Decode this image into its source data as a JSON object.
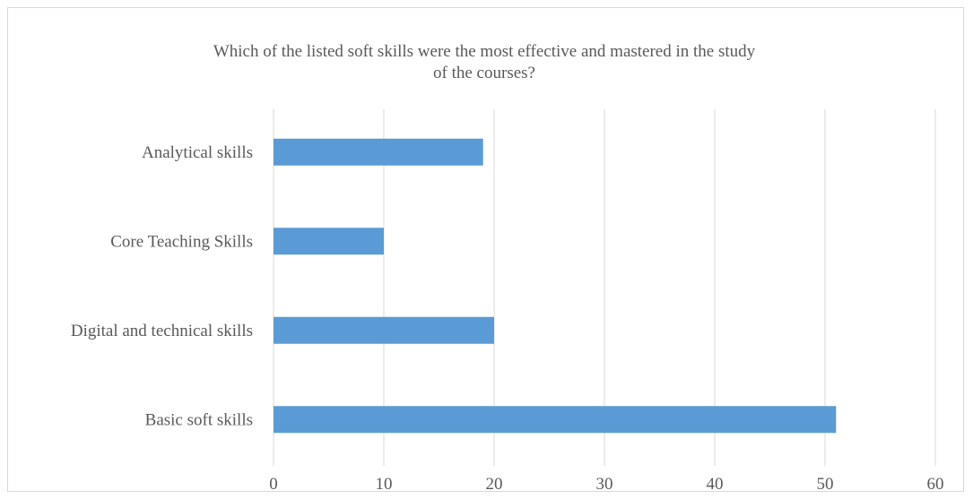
{
  "chart_data": {
    "type": "bar",
    "orientation": "horizontal",
    "title": "Which of the listed soft skills were the most effective and mastered in the study of the courses?",
    "categories": [
      "Analytical skills",
      "Core Teaching Skills",
      "Digital and technical skills",
      "Basic soft skills"
    ],
    "values": [
      19,
      10,
      20,
      51
    ],
    "xlim": [
      0,
      60
    ],
    "xticks": [
      0,
      10,
      20,
      30,
      40,
      50,
      60
    ],
    "grid": true,
    "legend": "none",
    "bar_color": "#5b9bd5",
    "grid_color": "#d9d9d9",
    "text_color": "#595959"
  }
}
